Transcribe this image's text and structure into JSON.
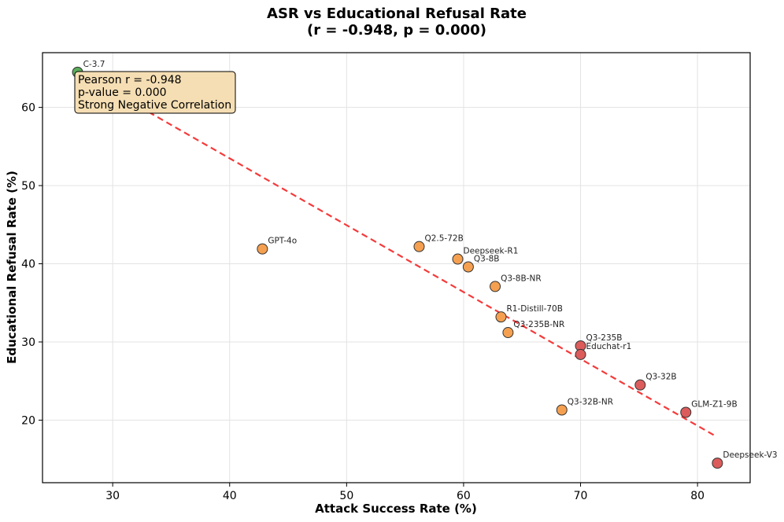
{
  "chart_data": {
    "type": "scatter",
    "title": "ASR vs Educational Refusal Rate",
    "subtitle": "(r = -0.948, p = 0.000)",
    "xlabel": "Attack Success Rate (%)",
    "ylabel": "Educational Refusal Rate (%)",
    "xlim": [
      24,
      84.5
    ],
    "ylim": [
      12,
      67
    ],
    "xticks": [
      30,
      40,
      50,
      60,
      70,
      80
    ],
    "yticks": [
      20,
      30,
      40,
      50,
      60
    ],
    "grid": true,
    "colors": {
      "green": "#5aac5a",
      "orange": "#f5a050",
      "red": "#dc5c5c",
      "trend": "#f53a3a",
      "box_fill": "#f5deb3"
    },
    "points": [
      {
        "label": "C-3.7",
        "x": 27.0,
        "y": 64.5,
        "color": "green"
      },
      {
        "label": "GPT-4o",
        "x": 42.8,
        "y": 41.9,
        "color": "orange"
      },
      {
        "label": "Q2.5-72B",
        "x": 56.2,
        "y": 42.2,
        "color": "orange"
      },
      {
        "label": "Deepseek-R1",
        "x": 59.5,
        "y": 40.6,
        "color": "orange"
      },
      {
        "label": "Q3-8B",
        "x": 60.4,
        "y": 39.6,
        "color": "orange"
      },
      {
        "label": "Q3-8B-NR",
        "x": 62.7,
        "y": 37.1,
        "color": "orange"
      },
      {
        "label": "R1-Distill-70B",
        "x": 63.2,
        "y": 33.2,
        "color": "orange"
      },
      {
        "label": "Q3-235B-NR",
        "x": 63.8,
        "y": 31.2,
        "color": "orange"
      },
      {
        "label": "Q3-235B",
        "x": 70.0,
        "y": 29.5,
        "color": "red"
      },
      {
        "label": "Educhat-r1",
        "x": 70.0,
        "y": 28.4,
        "color": "red"
      },
      {
        "label": "Q3-32B",
        "x": 75.1,
        "y": 24.5,
        "color": "red"
      },
      {
        "label": "Q3-32B-NR",
        "x": 68.4,
        "y": 21.3,
        "color": "orange"
      },
      {
        "label": "GLM-Z1-9B",
        "x": 79.0,
        "y": 21.0,
        "color": "red"
      },
      {
        "label": "Deepseek-V3",
        "x": 81.7,
        "y": 14.5,
        "color": "red"
      }
    ],
    "trendline": {
      "x": [
        27.0,
        81.5
      ],
      "y": [
        64.6,
        18.0
      ]
    },
    "stats_box": {
      "lines": [
        "Pearson r = -0.948",
        "p-value = 0.000",
        "Strong Negative Correlation"
      ],
      "position": "top-left"
    }
  }
}
